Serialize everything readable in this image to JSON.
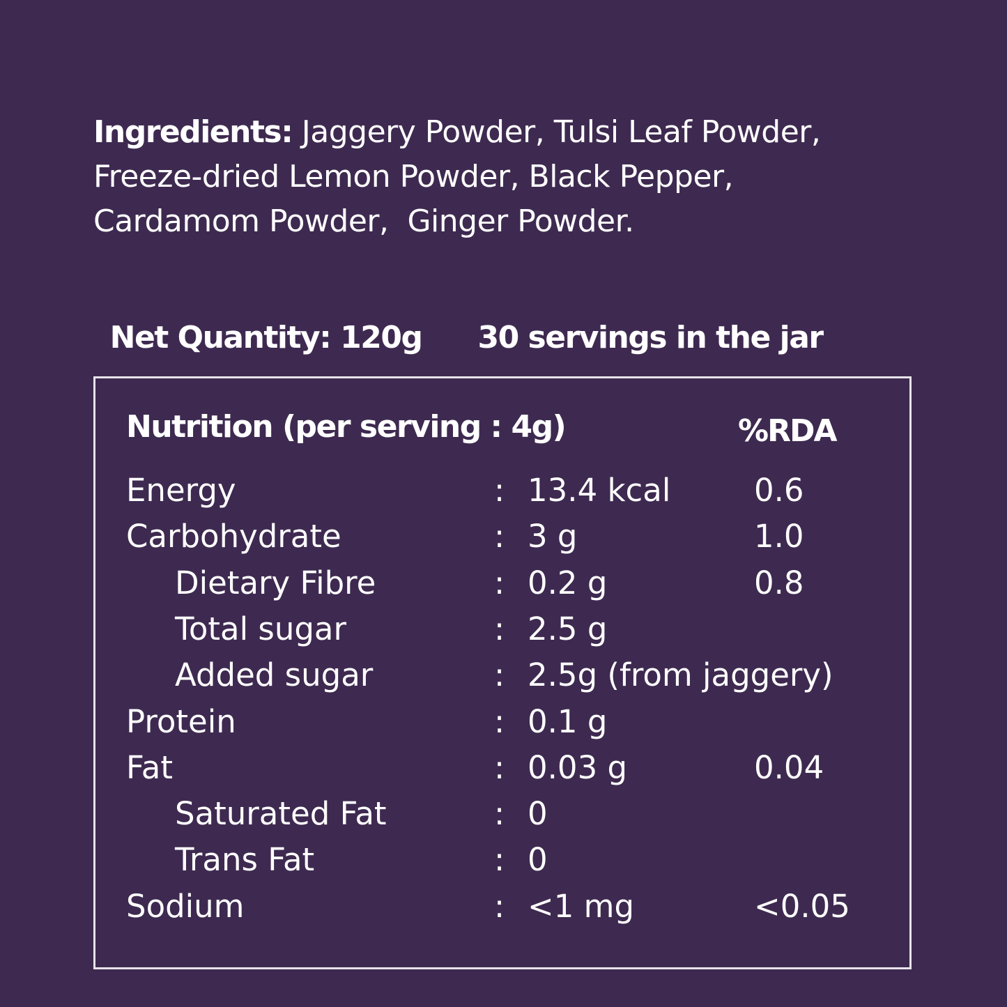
{
  "ingredients": {
    "label": "Ingredients:",
    "lines": [
      " Jaggery Powder, Tulsi Leaf Powder,",
      "Freeze-dried Lemon Powder, Black Pepper,",
      "Cardamom Powder,  Ginger Powder."
    ]
  },
  "net_quantity": "Net Quantity: 120g",
  "servings": "30 servings in the jar",
  "nutrition": {
    "title": "Nutrition (per serving : 4g)",
    "rda_header": "%RDA",
    "separator": ":",
    "rows": [
      {
        "name": "Energy",
        "value": "13.4 kcal",
        "rda": "0.6",
        "sub": false
      },
      {
        "name": "Carbohydrate",
        "value": "3 g",
        "rda": "1.0",
        "sub": false
      },
      {
        "name": "Dietary Fibre",
        "value": "0.2 g",
        "rda": "0.8",
        "sub": true
      },
      {
        "name": "Total sugar",
        "value": "2.5 g",
        "rda": "",
        "sub": true
      },
      {
        "name": "Added sugar",
        "value": "2.5g (from jaggery)",
        "rda": "",
        "sub": true
      },
      {
        "name": "Protein",
        "value": "0.1 g",
        "rda": "",
        "sub": false
      },
      {
        "name": "Fat",
        "value": "0.03 g",
        "rda": "0.04",
        "sub": false
      },
      {
        "name": "Saturated Fat",
        "value": "0",
        "rda": "",
        "sub": true
      },
      {
        "name": "Trans Fat",
        "value": "0",
        "rda": "",
        "sub": true
      },
      {
        "name": "Sodium",
        "value": "<1 mg",
        "rda": "<0.05",
        "sub": false
      }
    ]
  },
  "colors": {
    "background": "#3e2a50",
    "text": "#ffffff",
    "border": "#e8e4ec"
  }
}
